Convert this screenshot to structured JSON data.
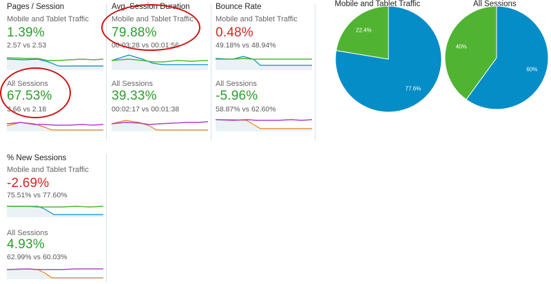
{
  "metrics": [
    {
      "title": "Pages / Session",
      "groups": [
        {
          "segment": "Mobile and Tablet Traffic",
          "value": "1.39%",
          "compare": "2.57 vs 2.53"
        },
        {
          "segment": "All Sessions",
          "value": "67.53%",
          "compare": "3.66 vs 2.18"
        }
      ]
    },
    {
      "title": "Avg. Session Duration",
      "groups": [
        {
          "segment": "Mobile and Tablet Traffic",
          "value": "79.88%",
          "compare": "00:03:28 vs 00:01:56"
        },
        {
          "segment": "All Sessions",
          "value": "39.33%",
          "compare": "00:02:17 vs 00:01:38"
        }
      ]
    },
    {
      "title": "Bounce Rate",
      "groups": [
        {
          "segment": "Mobile and Tablet Traffic",
          "value": "0.48%",
          "compare": "49.18% vs 48.94%"
        },
        {
          "segment": "All Sessions",
          "value": "-5.96%",
          "compare": "58.87% vs 62.60%"
        }
      ]
    },
    {
      "title": "% New Sessions",
      "groups": [
        {
          "segment": "Mobile and Tablet Traffic",
          "value": "-2.69%",
          "compare": "75.51% vs 77.60%"
        },
        {
          "segment": "All Sessions",
          "value": "4.93%",
          "compare": "62.99% vs 60.03%"
        }
      ]
    }
  ],
  "pies": [
    {
      "title": "Mobile and Tablet Traffic",
      "slices": [
        {
          "label": "77.6%",
          "value": 77.6,
          "color": "#058dc7"
        },
        {
          "label": "22.4%",
          "value": 22.4,
          "color": "#50b432"
        }
      ]
    },
    {
      "title": "All Sessions",
      "slices": [
        {
          "label": "60%",
          "value": 60,
          "color": "#058dc7"
        },
        {
          "label": "40%",
          "value": 40,
          "color": "#50b432"
        }
      ]
    }
  ],
  "colors": {
    "positive": "#2a9d2a",
    "negative": "#d8231c",
    "blue": "#058dc7",
    "green": "#50b432",
    "purple": "#b040c8",
    "orange": "#ed7e17",
    "annotation": "#d01010"
  }
}
